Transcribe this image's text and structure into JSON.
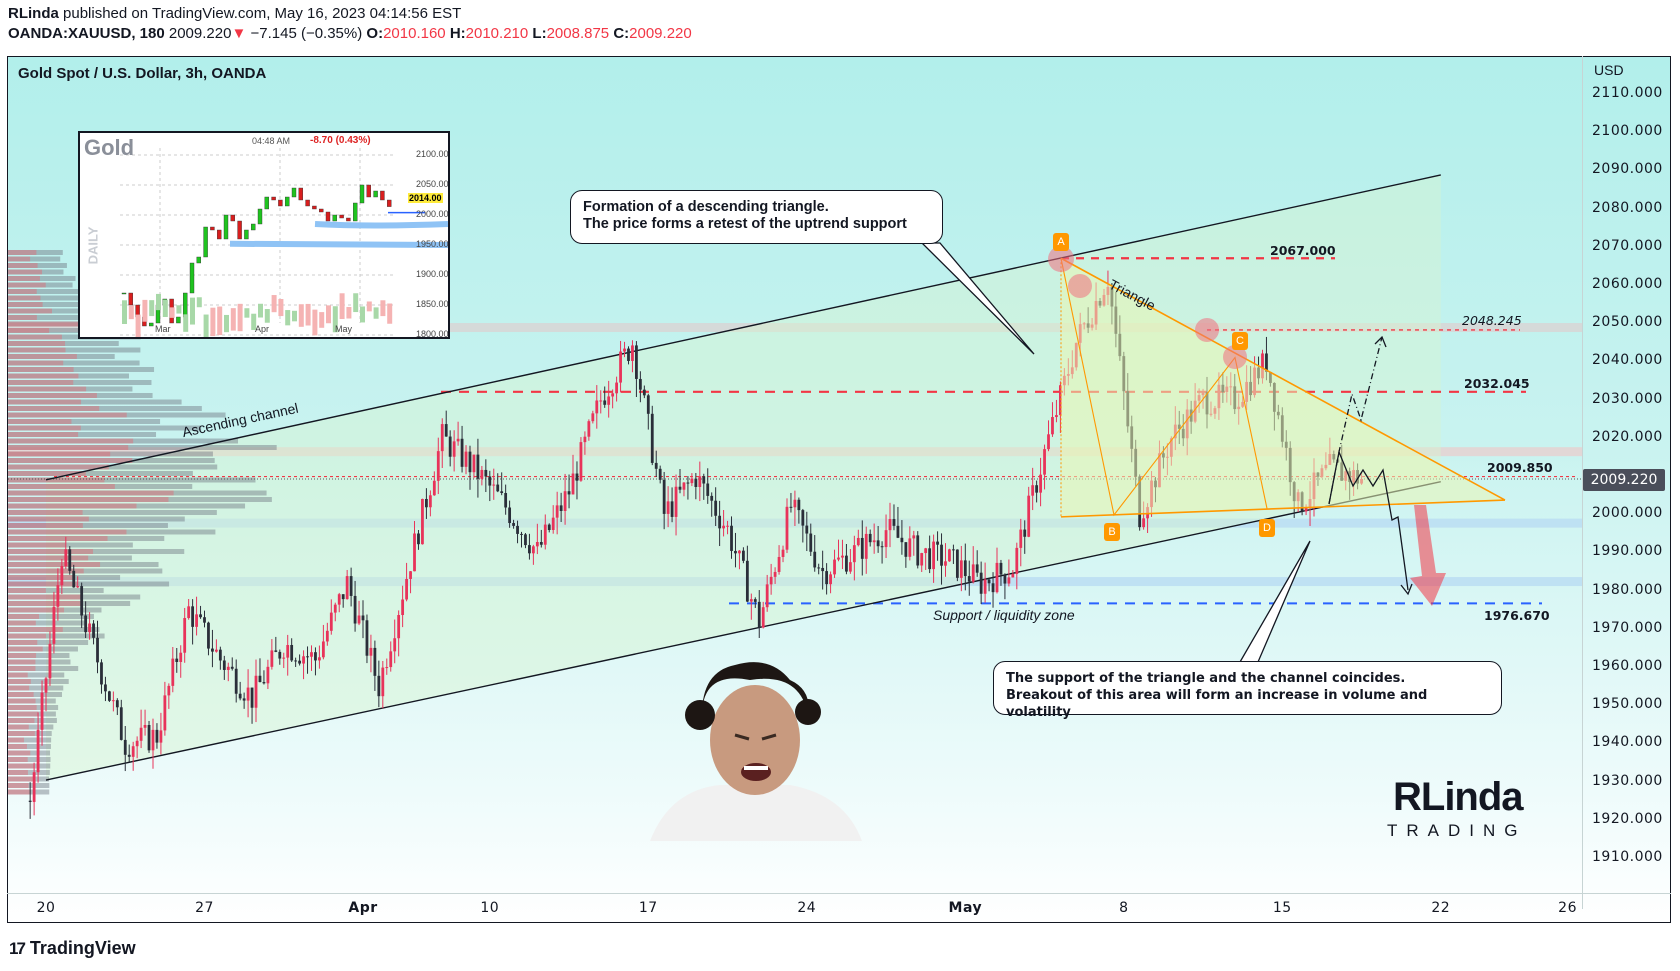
{
  "header": {
    "author": "RLinda",
    "published": "published on TradingView.com, May 16, 2023 04:14:56 EST",
    "symbol": "OANDA:XAUUSD, 180",
    "price": "2009.220",
    "change": "−7.145 (−0.35%)",
    "o_label": "O:",
    "o": "2010.160",
    "h_label": "H:",
    "h": "2010.210",
    "l_label": "L:",
    "l": "2008.875",
    "c_label": "C:",
    "c": "2009.220"
  },
  "chart": {
    "title": "Gold Spot / U.S. Dollar, 3h, OANDA",
    "currency": "USD",
    "current_price": "2009.220",
    "price_ticks": [
      "2110.000",
      "2100.000",
      "2090.000",
      "2080.000",
      "2070.000",
      "2060.000",
      "2050.000",
      "2040.000",
      "2030.000",
      "2020.000",
      "2000.000",
      "1990.000",
      "1980.000",
      "1970.000",
      "1960.000",
      "1950.000",
      "1940.000",
      "1930.000",
      "1920.000",
      "1910.000"
    ],
    "time_ticks": [
      {
        "label": "20",
        "date": "2023-03-20",
        "bold": false
      },
      {
        "label": "27",
        "date": "2023-03-27",
        "bold": false
      },
      {
        "label": "Apr",
        "date": "2023-04-03",
        "bold": true
      },
      {
        "label": "10",
        "date": "2023-04-10",
        "bold": false
      },
      {
        "label": "17",
        "date": "2023-04-17",
        "bold": false
      },
      {
        "label": "24",
        "date": "2023-04-24",
        "bold": false
      },
      {
        "label": "May",
        "date": "2023-05-01",
        "bold": true
      },
      {
        "label": "8",
        "date": "2023-05-08",
        "bold": false
      },
      {
        "label": "15",
        "date": "2023-05-15",
        "bold": false
      },
      {
        "label": "22",
        "date": "2023-05-22",
        "bold": false
      },
      {
        "label": "26",
        "date": "2023-05-26",
        "bold": false
      }
    ],
    "levels": [
      {
        "label": "2067.000",
        "value": 2067.0,
        "color": "#f23645"
      },
      {
        "label": "2048.245",
        "value": 2048.245,
        "color": "#f23645"
      },
      {
        "label": "2032.045",
        "value": 2032.045,
        "color": "#f23645"
      },
      {
        "label": "2009.850",
        "value": 2009.85,
        "color": "#f23645"
      },
      {
        "label": "1976.670",
        "value": 1976.67,
        "color": "#2962ff"
      }
    ],
    "markers": [
      "A",
      "B",
      "C",
      "D"
    ],
    "labels": {
      "channel": "Ascending channel",
      "triangle": "Triangle",
      "support": "Support / liquidity zone"
    },
    "callouts": {
      "top_line1": "Formation of a descending triangle.",
      "top_line2": "The price forms a retest of the uptrend support",
      "bottom_line1": "The support of the triangle and the channel coincides.",
      "bottom_line2": "Breakout of this area will form an increase in volume and volatility"
    },
    "colors": {
      "up": "#e8335a",
      "down": "#2a2e39",
      "triangle": "#ff9800",
      "accent_red": "#f23645",
      "accent_blue": "#2962ff"
    }
  },
  "chart_data": {
    "type": "candlestick",
    "interval": "3h",
    "ylim": [
      1902,
      2116
    ],
    "last_close": 2009.22,
    "path": [
      [
        "2023-03-17",
        1925
      ],
      [
        "2023-03-20",
        1990
      ],
      [
        "2023-03-21",
        1965
      ],
      [
        "2023-03-22",
        1940
      ],
      [
        "2023-03-23",
        1942
      ],
      [
        "2023-03-24",
        1975
      ],
      [
        "2023-03-27",
        1962
      ],
      [
        "2023-03-28",
        1952
      ],
      [
        "2023-03-29",
        1966
      ],
      [
        "2023-03-30",
        1962
      ],
      [
        "2023-03-31",
        1982
      ],
      [
        "2023-04-03",
        1955
      ],
      [
        "2023-04-04",
        1988
      ],
      [
        "2023-04-05",
        2020
      ],
      [
        "2023-04-06",
        2012
      ],
      [
        "2023-04-10",
        2002
      ],
      [
        "2023-04-11",
        1990
      ],
      [
        "2023-04-12",
        2006
      ],
      [
        "2023-04-13",
        2030
      ],
      [
        "2023-04-14",
        2045
      ],
      [
        "2023-04-17",
        2000
      ],
      [
        "2023-04-18",
        2010
      ],
      [
        "2023-04-19",
        1996
      ],
      [
        "2023-04-20",
        1972
      ],
      [
        "2023-04-21",
        2002
      ],
      [
        "2023-04-24",
        1985
      ],
      [
        "2023-04-25",
        1990
      ],
      [
        "2023-04-26",
        1996
      ],
      [
        "2023-04-27",
        1990
      ],
      [
        "2023-04-28",
        1988
      ],
      [
        "2023-05-01",
        1982
      ],
      [
        "2023-05-02",
        1986
      ],
      [
        "2023-05-03",
        2016
      ],
      [
        "2023-05-04",
        2045
      ],
      [
        "2023-05-05",
        2062
      ],
      [
        "2023-05-08",
        2000
      ],
      [
        "2023-05-09",
        2020
      ],
      [
        "2023-05-10",
        2030
      ],
      [
        "2023-05-11",
        2030
      ],
      [
        "2023-05-12",
        2040
      ],
      [
        "2023-05-15",
        2002
      ],
      [
        "2023-05-16",
        2012
      ],
      [
        "2023-05-17",
        2009.22
      ]
    ],
    "channel": {
      "upper": [
        [
          "2023-03-20",
          2009
        ],
        [
          "2023-05-22",
          2088.8
        ]
      ],
      "lower": [
        [
          "2023-03-20",
          1930.4
        ],
        [
          "2023-05-22",
          2008.5
        ]
      ]
    },
    "triangle": {
      "A": 2067,
      "B": 1999.8,
      "C": 2041,
      "D": 2001.5,
      "apex": 2003.7
    }
  },
  "inset": {
    "title": "Gold",
    "timeframe": "DAILY",
    "time": "04:48 AM",
    "change": "-8.70 (0.43%)",
    "price_tag": "2014.00",
    "ticks": [
      "2100.00",
      "2050.00",
      "2000.00",
      "1950.00",
      "1900.00",
      "1850.00",
      "1800.00"
    ],
    "months": [
      "Mar",
      "Apr",
      "May"
    ]
  },
  "logo": {
    "name": "RLinda",
    "sub": "TRADING"
  },
  "footer": {
    "brand": "TradingView"
  }
}
